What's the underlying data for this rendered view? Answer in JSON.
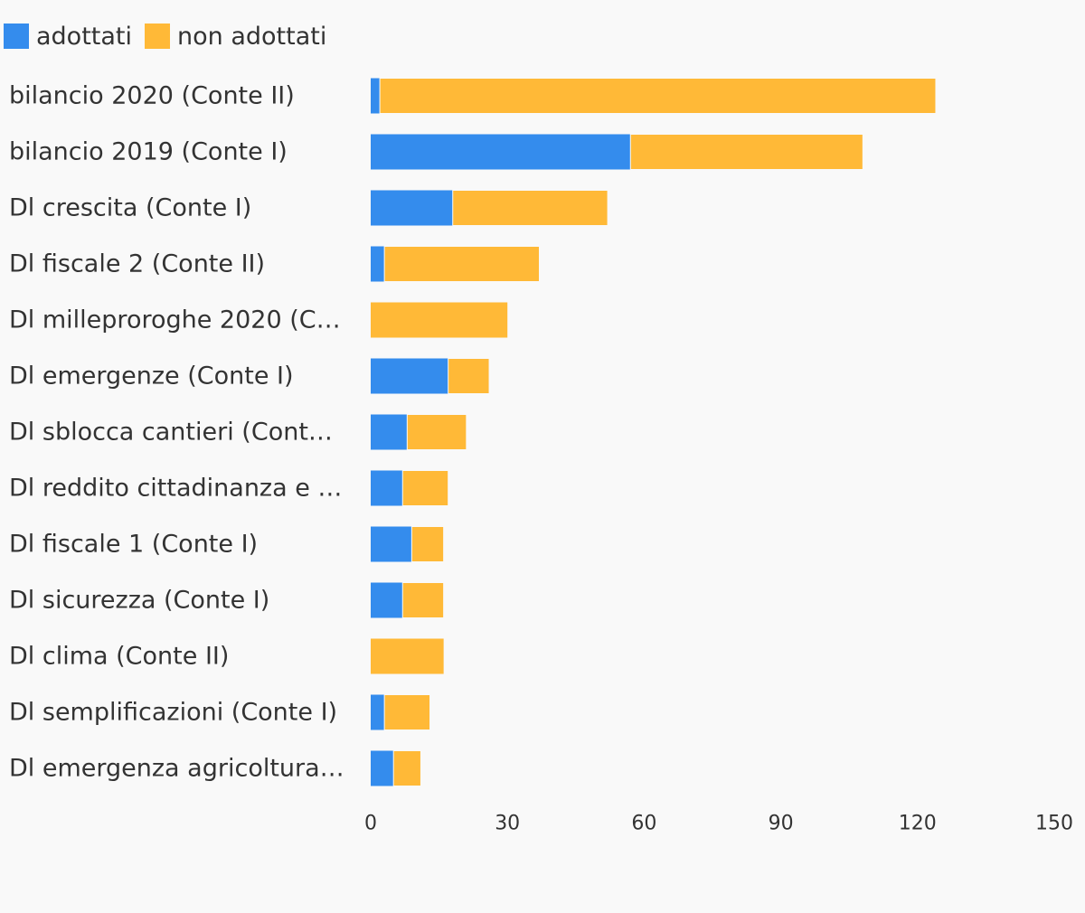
{
  "chart_data": {
    "type": "bar",
    "orientation": "horizontal",
    "stacked": true,
    "categories": [
      "bilancio 2020 (Conte II)",
      "bilancio 2019 (Conte I)",
      "Dl crescita (Conte I)",
      "Dl fiscale 2 (Conte II)",
      "Dl milleproroghe 2020 (C…",
      "Dl emergenze (Conte I)",
      "Dl sblocca cantieri (Cont…",
      "Dl reddito cittadinanza e …",
      "Dl fiscale 1 (Conte I)",
      "Dl sicurezza (Conte I)",
      "Dl clima (Conte II)",
      "Dl semplificazioni (Conte I)",
      "Dl emergenza agricoltura…"
    ],
    "series": [
      {
        "name": "adottati",
        "color": "#348ced",
        "values": [
          2,
          57,
          18,
          3,
          0,
          17,
          8,
          7,
          9,
          7,
          0,
          3,
          5
        ]
      },
      {
        "name": "non adottati",
        "color": "#ffb937",
        "values": [
          122,
          51,
          34,
          34,
          30,
          9,
          13,
          10,
          7,
          9,
          16,
          10,
          6
        ]
      }
    ],
    "xlim": [
      0,
      150
    ],
    "xticks": [
      "0",
      "30",
      "60",
      "90",
      "120",
      "150"
    ],
    "legend_position": "top-left",
    "grid": false
  }
}
